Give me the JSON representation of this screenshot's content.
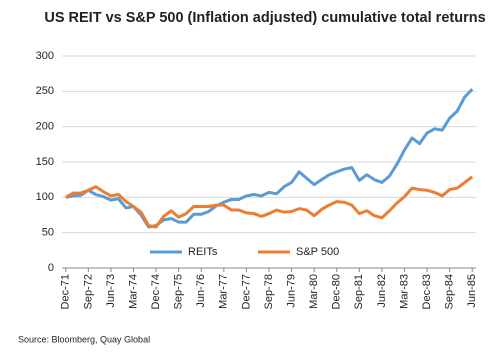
{
  "chart_data": {
    "type": "line",
    "title": "US REIT vs S&P 500 (Inflation adjusted) cumulative total returns",
    "source": "Source: Bloomberg, Quay Global",
    "categories": [
      "Dec-71",
      null,
      null,
      "Sep-72",
      null,
      null,
      "Jun-73",
      null,
      null,
      "Mar-74",
      null,
      null,
      "Dec-74",
      null,
      null,
      "Sep-75",
      null,
      null,
      "Jun-76",
      null,
      null,
      "Mar-77",
      null,
      null,
      "Dec-77",
      null,
      null,
      "Sep-78",
      null,
      null,
      "Jun-79",
      null,
      null,
      "Mar-80",
      null,
      null,
      "Dec-80",
      null,
      null,
      "Sep-81",
      null,
      null,
      "Jun-82",
      null,
      null,
      "Mar-83",
      null,
      null,
      "Dec-83",
      null,
      null,
      "Sep-84",
      null,
      null,
      "Jun-85"
    ],
    "series": [
      {
        "name": "REITs",
        "color": "#5b9bd5",
        "values": [
          100,
          102,
          103,
          110,
          104,
          101,
          96,
          98,
          85,
          87,
          75,
          58,
          60,
          68,
          70,
          65,
          65,
          76,
          76,
          80,
          88,
          93,
          97,
          97,
          102,
          104,
          102,
          107,
          105,
          115,
          121,
          136,
          127,
          118,
          125,
          132,
          136,
          140,
          142,
          124,
          132,
          125,
          121,
          130,
          147,
          167,
          184,
          176,
          191,
          197,
          195,
          212,
          222,
          242,
          253
        ]
      },
      {
        "name": "S&P 500",
        "color": "#ed7d31",
        "values": [
          100,
          106,
          106,
          110,
          115,
          108,
          102,
          104,
          94,
          87,
          79,
          60,
          58,
          73,
          81,
          72,
          77,
          87,
          87,
          87,
          89,
          89,
          82,
          82,
          78,
          77,
          73,
          77,
          82,
          79,
          80,
          84,
          82,
          74,
          83,
          89,
          94,
          93,
          89,
          77,
          81,
          74,
          71,
          81,
          92,
          101,
          113,
          111,
          110,
          107,
          102,
          111,
          113,
          121,
          129
        ]
      }
    ],
    "ylim": [
      0,
      300
    ],
    "yticks": [
      0,
      50,
      100,
      150,
      200,
      250,
      300
    ],
    "grid": true,
    "legend": "bottom"
  }
}
